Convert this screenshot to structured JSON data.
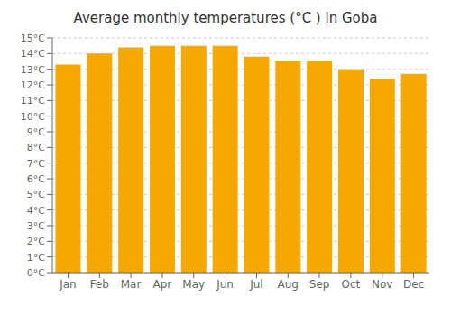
{
  "chart_data": {
    "type": "bar",
    "title": "Average monthly temperatures (°C ) in Goba",
    "categories": [
      "Jan",
      "Feb",
      "Mar",
      "Apr",
      "May",
      "Jun",
      "Jul",
      "Aug",
      "Sep",
      "Oct",
      "Nov",
      "Dec"
    ],
    "values": [
      13.3,
      14.0,
      14.4,
      14.5,
      14.5,
      14.5,
      13.8,
      13.5,
      13.5,
      13.0,
      12.4,
      12.7
    ],
    "color": "#F5A800",
    "ylim": [
      0,
      15
    ],
    "yticks": [
      {
        "value": 0,
        "label": "0°C"
      },
      {
        "value": 1,
        "label": "1°C"
      },
      {
        "value": 2,
        "label": "2°C"
      },
      {
        "value": 3,
        "label": "3°C"
      },
      {
        "value": 4,
        "label": "4°C"
      },
      {
        "value": 5,
        "label": "5°C"
      },
      {
        "value": 6,
        "label": "6°C"
      },
      {
        "value": 7,
        "label": "7°C"
      },
      {
        "value": 8,
        "label": "8°C"
      },
      {
        "value": 9,
        "label": "9°C"
      },
      {
        "value": 10,
        "label": "10°C"
      },
      {
        "value": 11,
        "label": "11°C"
      },
      {
        "value": 12,
        "label": "12°C"
      },
      {
        "value": 13,
        "label": "13°C"
      },
      {
        "value": 14,
        "label": "14°C"
      },
      {
        "value": 15,
        "label": "15°C"
      }
    ],
    "grid": true
  }
}
